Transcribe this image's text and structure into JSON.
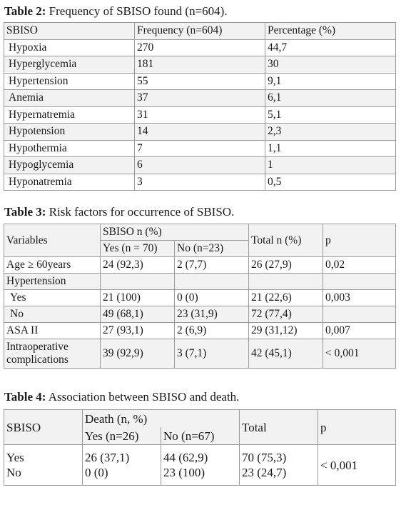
{
  "table2": {
    "title_bold": "Table 2:",
    "title_rest": " Frequency of SBISO found (n=604).",
    "headers": [
      "SBISO",
      "Frequency (n=604)",
      "Percentage (%)"
    ],
    "rows": [
      [
        "Hypoxia",
        "270",
        "44,7"
      ],
      [
        "Hyperglycemia",
        "181",
        "30"
      ],
      [
        "Hypertension",
        "55",
        "9,1"
      ],
      [
        "Anemia",
        "37",
        "6,1"
      ],
      [
        "Hypernatremia",
        "31",
        "5,1"
      ],
      [
        "Hypotension",
        "14",
        "2,3"
      ],
      [
        "Hypothermia",
        "7",
        "1,1"
      ],
      [
        "Hypoglycemia",
        "6",
        "1"
      ],
      [
        "Hyponatremia",
        "3",
        "0,5"
      ]
    ]
  },
  "table3": {
    "title_bold": "Table 3:",
    "title_rest": " Risk factors for occurrence of SBISO.",
    "header": {
      "variables": "Variables",
      "group": "SBISO n (%)",
      "yes": "Yes (n = 70)",
      "no": "No (n=23)",
      "total": "Total n (%)",
      "p": "p"
    },
    "rows": [
      {
        "label": "Age ≥ 60years",
        "yes": "24 (92,3)",
        "no": "2 (7,7)",
        "total": "26 (27,9)",
        "p": "0,02"
      },
      {
        "label": "Hypertension",
        "yes": "",
        "no": "",
        "total": "",
        "p": ""
      },
      {
        "label": "Yes",
        "yes": "21 (100)",
        "no": "0 (0)",
        "total": "21 (22,6)",
        "p": "0,003"
      },
      {
        "label": "No",
        "yes": "49 (68,1)",
        "no": "23 (31,9)",
        "total": "72 (77,4)",
        "p": ""
      },
      {
        "label": "ASA II",
        "yes": "27 (93,1)",
        "no": "2 (6,9)",
        "total": "29 (31,12)",
        "p": "0,007"
      },
      {
        "label": "Intraoperative complications",
        "yes": "39 (92,9)",
        "no": "3 (7,1)",
        "total": "42 (45,1)",
        "p": "< 0,001"
      }
    ]
  },
  "table4": {
    "title_bold": "Table 4:",
    "title_rest": " Association between SBISO and death.",
    "header": {
      "sbiso": "SBISO",
      "group": "Death (n, %)",
      "yes": "Yes (n=26)",
      "no": "No (n=67)",
      "total": "Total",
      "p": "p"
    },
    "row_labels": [
      "Yes",
      "No"
    ],
    "yes_values": [
      "26 (37,1)",
      "0 (0)"
    ],
    "no_values": [
      "44 (62,9)",
      "23 (100)"
    ],
    "total_values": [
      "70 (75,3)",
      "23 (24,7)"
    ],
    "p": "< 0,001"
  }
}
